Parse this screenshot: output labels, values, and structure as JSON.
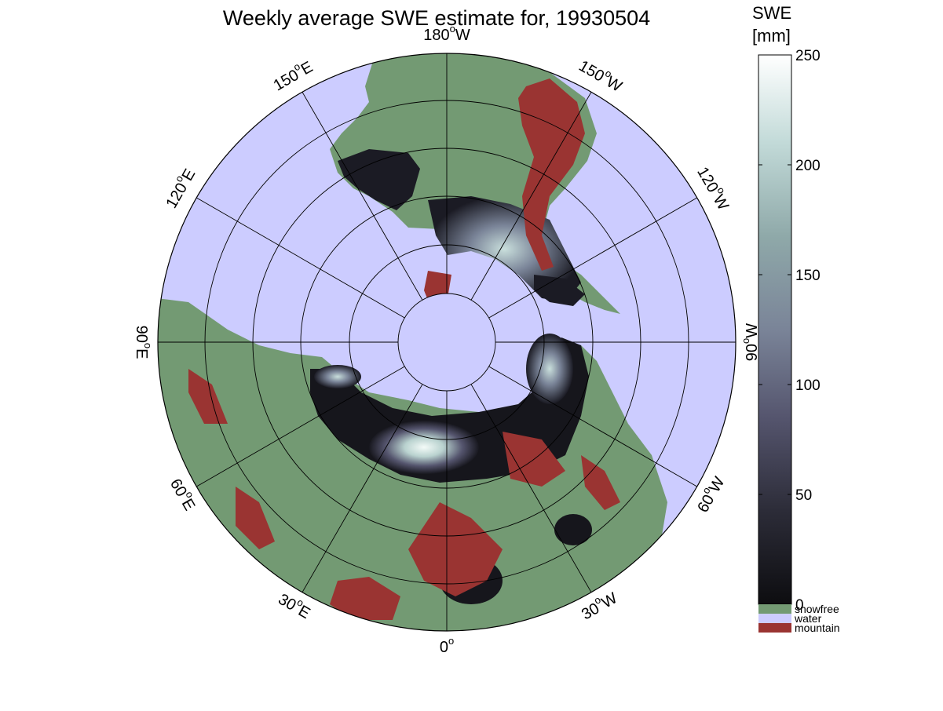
{
  "title": "Weekly average SWE estimate for, 19930504",
  "map": {
    "projection": "north polar stereographic",
    "center": "North Pole",
    "longitude_labels": [
      {
        "deg": "90",
        "dir": "W",
        "lon": -90
      },
      {
        "deg": "120",
        "dir": "W",
        "lon": -120
      },
      {
        "deg": "150",
        "dir": "W",
        "lon": -150
      },
      {
        "deg": "180",
        "dir": "W",
        "lon": 180
      },
      {
        "deg": "150",
        "dir": "E",
        "lon": 150
      },
      {
        "deg": "120",
        "dir": "E",
        "lon": 120
      },
      {
        "deg": "90",
        "dir": "E",
        "lon": 90
      },
      {
        "deg": "60",
        "dir": "E",
        "lon": 60
      },
      {
        "deg": "30",
        "dir": "E",
        "lon": 30
      },
      {
        "deg": "0",
        "dir": "",
        "lon": 0
      },
      {
        "deg": "30",
        "dir": "W",
        "lon": -30
      },
      {
        "deg": "60",
        "dir": "W",
        "lon": -60
      }
    ]
  },
  "colorbar": {
    "label_line1": "SWE",
    "label_line2": "[mm]",
    "min": 0,
    "max": 250,
    "ticks": [
      "0",
      "50",
      "100",
      "150",
      "200",
      "250"
    ],
    "colormap": [
      "#0d0d10",
      "#2c2c38",
      "#55556e",
      "#7a8498",
      "#8fa9a9",
      "#c2dad8",
      "#ffffff"
    ]
  },
  "categories": [
    {
      "label": "snowfree",
      "color": "#739a73"
    },
    {
      "label": "water",
      "color": "#ccccff"
    },
    {
      "label": "mountain",
      "color": "#9a3432"
    }
  ],
  "colors": {
    "water": "#ccccff",
    "land": "#739a73",
    "mountain": "#9a3432",
    "grid": "#000000"
  }
}
